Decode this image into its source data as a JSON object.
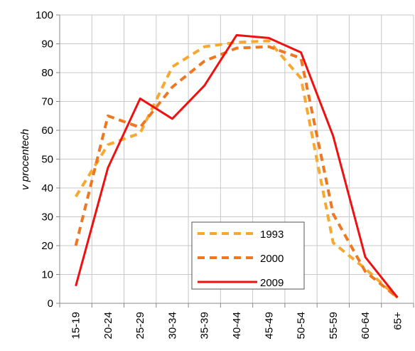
{
  "chart_data": {
    "type": "line",
    "y_label": "v procentech",
    "categories": [
      "15-19",
      "20-24",
      "25-29",
      "30-34",
      "35-39",
      "40-44",
      "45-49",
      "50-54",
      "55-59",
      "60-64",
      "65+"
    ],
    "series": [
      {
        "name": "1993",
        "color": "#f7a830",
        "dash": true,
        "values": [
          37,
          55,
          59,
          82,
          89,
          90.5,
          91,
          78,
          21,
          12,
          2
        ]
      },
      {
        "name": "2000",
        "color": "#ee7722",
        "dash": true,
        "values": [
          20,
          65,
          61,
          75,
          84,
          88.5,
          89,
          85,
          31,
          11,
          2
        ]
      },
      {
        "name": "2009",
        "color": "#ee1111",
        "dash": false,
        "values": [
          6,
          47,
          71,
          64,
          75.5,
          93,
          92,
          87,
          58,
          16,
          2
        ]
      }
    ],
    "ylim": [
      0,
      100
    ],
    "yticks": [
      0,
      10,
      20,
      30,
      40,
      50,
      60,
      70,
      80,
      90,
      100
    ],
    "grid": true
  }
}
